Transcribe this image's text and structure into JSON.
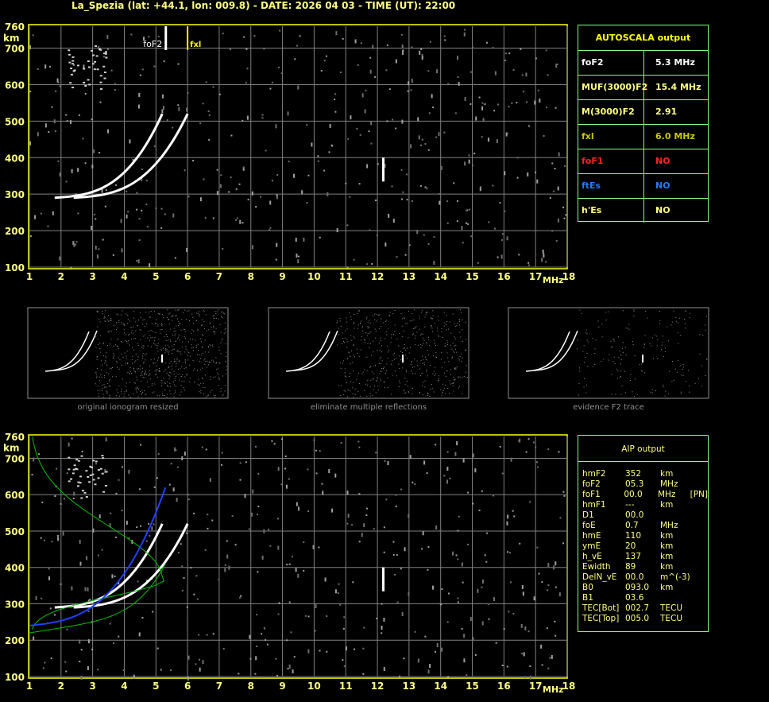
{
  "header": {
    "title": "La_Spezia (lat: +44.1, lon: 009.8) - DATE: 2026 04 03 - TIME (UT): 22:00"
  },
  "axes": {
    "y_unit": "km",
    "x_unit": "MHz",
    "y_ticks": [
      "760",
      "700",
      "600",
      "500",
      "400",
      "300",
      "200",
      "100"
    ],
    "x_ticks": [
      "1",
      "2",
      "3",
      "4",
      "5",
      "6",
      "7",
      "8",
      "9",
      "10",
      "11",
      "12",
      "13",
      "14",
      "15",
      "16",
      "17",
      "18"
    ]
  },
  "markers": {
    "fof2_label": "foF2",
    "fxl_label": "fxl"
  },
  "autoscala": {
    "title": "AUTOSCALA output",
    "rows": [
      {
        "label": "foF2",
        "value": "5.3 MHz",
        "color": "#ffffff"
      },
      {
        "label": "MUF(3000)F2",
        "value": "15.4 MHz",
        "color": "#ffff80"
      },
      {
        "label": "M(3000)F2",
        "value": "2.91",
        "color": "#ffff80"
      },
      {
        "label": "fxl",
        "value": "6.0 MHz",
        "color": "#c8c800"
      },
      {
        "label": "foF1",
        "value": "NO",
        "color": "#ff2020"
      },
      {
        "label": "ftEs",
        "value": "NO",
        "color": "#1e7cff"
      },
      {
        "label": "h'Es",
        "value": "NO",
        "color": "#ffff80"
      }
    ]
  },
  "thumbnails": [
    {
      "caption": "original ionogram resized"
    },
    {
      "caption": "eliminate multiple reflections"
    },
    {
      "caption": "evidence F2 trace"
    }
  ],
  "aip": {
    "title": "AIP output",
    "rows": [
      [
        "hmF2",
        "352",
        "km",
        ""
      ],
      [
        "foF2",
        "05.3",
        "MHz",
        ""
      ],
      [
        "foF1",
        "00.0",
        "MHz",
        "[PN]"
      ],
      [
        "hmF1",
        "---",
        "km",
        ""
      ],
      [
        "D1",
        "00.0",
        "",
        ""
      ],
      [
        "foE",
        "0.7",
        "MHz",
        ""
      ],
      [
        "hmE",
        "110",
        "km",
        ""
      ],
      [
        "ymE",
        "20",
        "km",
        ""
      ],
      [
        "h_vE",
        "137",
        "km",
        ""
      ],
      [
        "Ewidth",
        "89",
        "km",
        ""
      ],
      [
        "DelN_vE",
        "00.0",
        "m^(-3)",
        ""
      ],
      [
        "B0",
        "093.0",
        "km",
        ""
      ],
      [
        "B1",
        "03.6",
        "",
        ""
      ],
      [
        "TEC[Bot]",
        "002.7",
        "TECU",
        ""
      ],
      [
        "TEC[Top]",
        "005.0",
        "TECU",
        ""
      ]
    ]
  },
  "colors": {
    "frame": "#ffff00",
    "grid": "#808080",
    "table_border": "#80ff80",
    "profile": "#00c000",
    "trace_fit": "#2040ff"
  }
}
